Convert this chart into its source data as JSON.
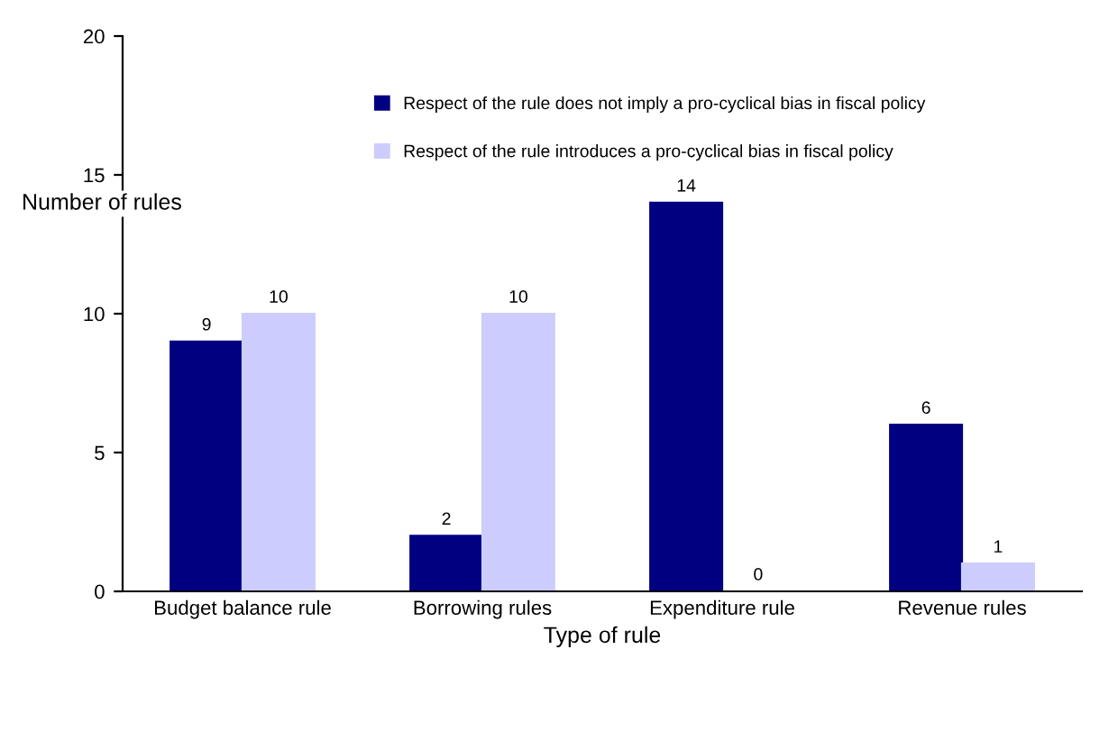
{
  "chart_data": {
    "type": "bar",
    "xlabel": "Type of rule",
    "ylabel": "Number of rules",
    "categories": [
      "Budget balance rule",
      "Borrowing rules",
      "Expenditure rule",
      "Revenue rules"
    ],
    "series": [
      {
        "name": "Respect of the rule does not imply a pro-cyclical bias in fiscal policy",
        "color": "#000080",
        "values": [
          9,
          2,
          14,
          6
        ]
      },
      {
        "name": "Respect of the rule introduces a pro-cyclical bias in fiscal policy",
        "color": "#ccccff",
        "values": [
          10,
          10,
          0,
          1
        ]
      }
    ],
    "ylim": [
      0,
      20
    ],
    "yticks": [
      0,
      5,
      10,
      15,
      20
    ],
    "grid": false,
    "legend": "top",
    "data_labels": true
  }
}
